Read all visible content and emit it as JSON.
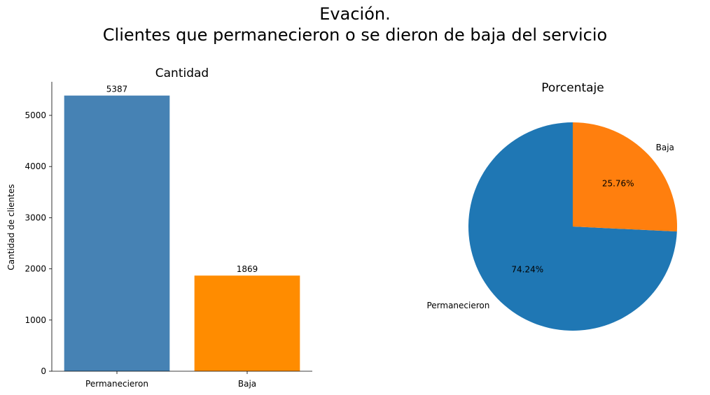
{
  "figure": {
    "title_line1": "Evación.",
    "title_line2": "Clientes que permanecieron o se dieron de baja del servicio"
  },
  "chart_data": [
    {
      "type": "bar",
      "title": "Cantidad",
      "xlabel": "",
      "ylabel": "Cantidad de clientes",
      "categories": [
        "Permanecieron",
        "Baja"
      ],
      "values": [
        5387,
        1869
      ],
      "data_labels": [
        "5387",
        "1869"
      ],
      "colors": [
        "#4682b4",
        "#ff8c00"
      ],
      "ylim": [
        0,
        5656
      ],
      "yticks": [
        0,
        1000,
        2000,
        3000,
        4000,
        5000
      ],
      "grid": false
    },
    {
      "type": "pie",
      "title": "Porcentaje",
      "labels": [
        "Permanecieron",
        "Baja"
      ],
      "values": [
        74.24,
        25.76
      ],
      "pct_labels": [
        "74.24%",
        "25.76%"
      ],
      "colors": [
        "#1f77b4",
        "#ff7f0e"
      ],
      "start_angle": 90,
      "direction": "counterclockwise"
    }
  ]
}
